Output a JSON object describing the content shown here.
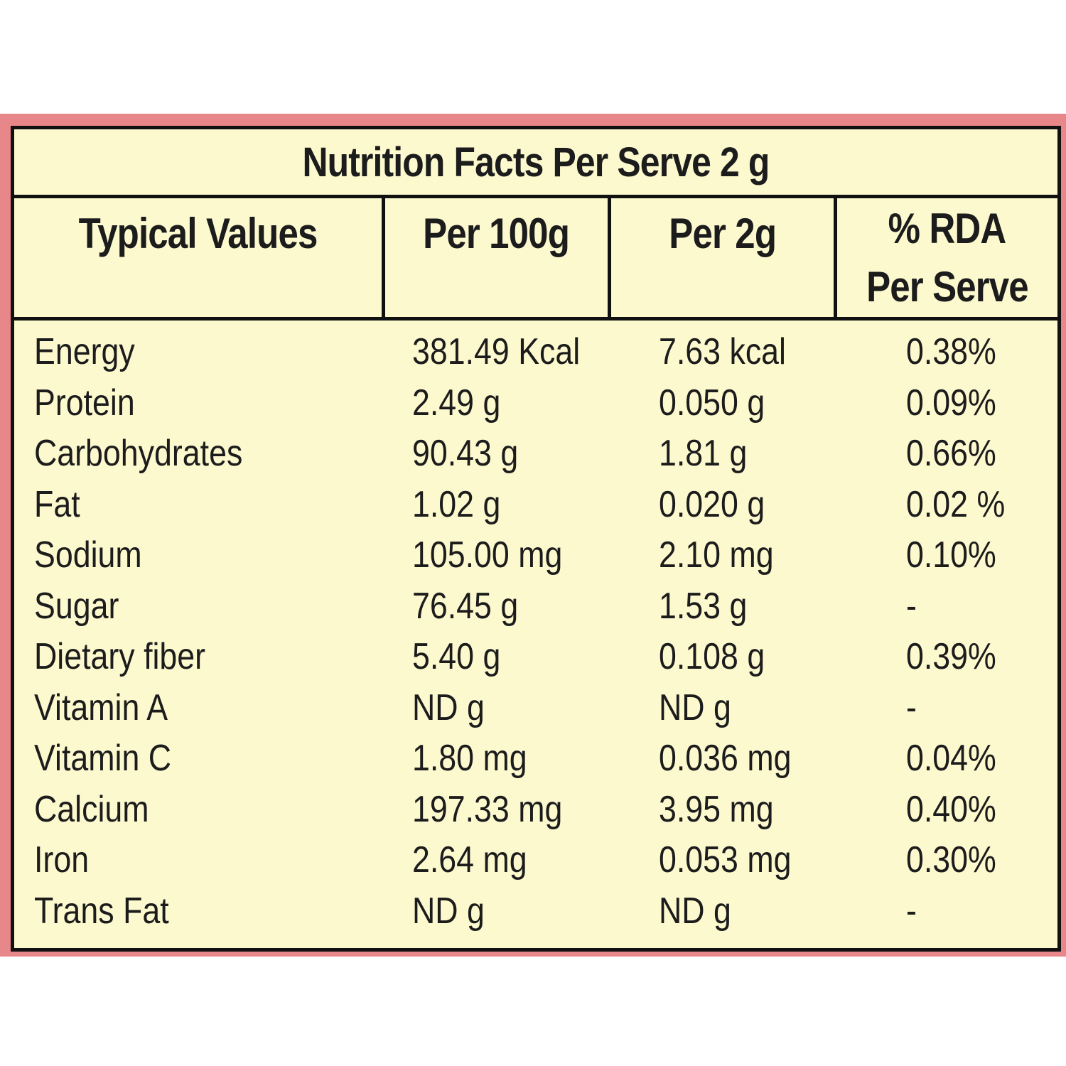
{
  "table": {
    "title": "Nutrition Facts Per Serve 2 g",
    "headers": {
      "typical_values": "Typical Values",
      "per_100g": "Per 100g",
      "per_2g": "Per 2g",
      "rda_line1": "% RDA",
      "rda_line2": "Per Serve"
    },
    "rows": [
      {
        "name": "Energy",
        "per_100g": "381.49 Kcal",
        "per_2g": "7.63 kcal",
        "rda": "0.38%"
      },
      {
        "name": "Protein",
        "per_100g": "2.49 g",
        "per_2g": "0.050 g",
        "rda": "0.09%"
      },
      {
        "name": "Carbohydrates",
        "per_100g": "90.43 g",
        "per_2g": "1.81 g",
        "rda": "0.66%"
      },
      {
        "name": "Fat",
        "per_100g": "1.02 g",
        "per_2g": "0.020 g",
        "rda": "0.02 %"
      },
      {
        "name": "Sodium",
        "per_100g": "105.00 mg",
        "per_2g": "2.10 mg",
        "rda": "0.10%"
      },
      {
        "name": "Sugar",
        "per_100g": "76.45 g",
        "per_2g": "1.53 g",
        "rda": "-"
      },
      {
        "name": "Dietary fiber",
        "per_100g": "5.40 g",
        "per_2g": "0.108 g",
        "rda": "0.39%"
      },
      {
        "name": "Vitamin A",
        "per_100g": "ND g",
        "per_2g": "ND g",
        "rda": "-"
      },
      {
        "name": "Vitamin C",
        "per_100g": "1.80 mg",
        "per_2g": "0.036 mg",
        "rda": "0.04%"
      },
      {
        "name": "Calcium",
        "per_100g": "197.33 mg",
        "per_2g": "3.95 mg",
        "rda": "0.40%"
      },
      {
        "name": "Iron",
        "per_100g": "2.64 mg",
        "per_2g": "0.053 mg",
        "rda": "0.30%"
      },
      {
        "name": "Trans Fat",
        "per_100g": "ND g",
        "per_2g": "ND g",
        "rda": "-"
      }
    ]
  },
  "colors": {
    "frame": "#e8878a",
    "panel": "#fdf9cf",
    "rule": "#111111",
    "text": "#1c1c1c"
  }
}
